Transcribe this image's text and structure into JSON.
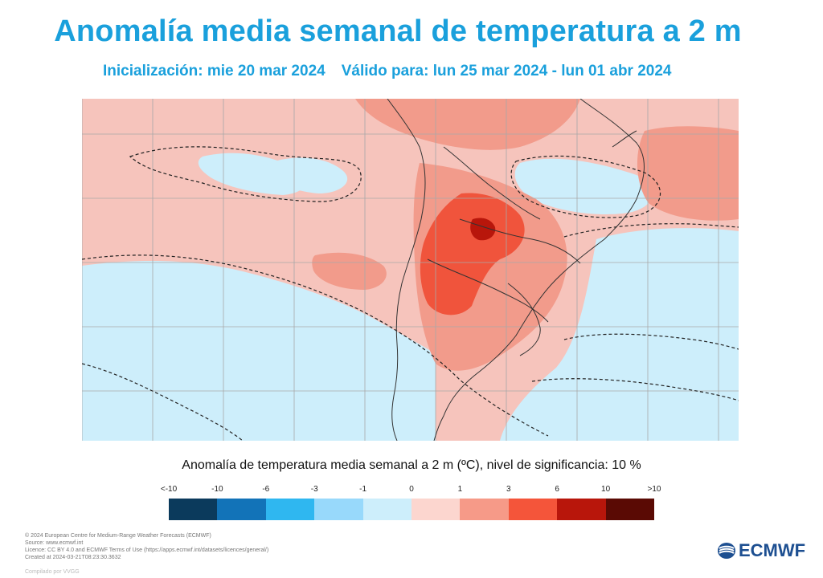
{
  "title": "Anomalía media semanal de temperatura a 2 m",
  "subtitle": {
    "init": "Inicialización: mie 20 mar 2024",
    "valid": "Válido para: lun 25 mar 2024 - lun 01 abr 2024"
  },
  "legend": {
    "title": "Anomalía de temperatura media semanal a 2 m (ºC), nivel de significancia: 10 %",
    "ticks": [
      "<-10",
      "-10",
      "-6",
      "-3",
      "-1",
      "0",
      "1",
      "3",
      "6",
      "10",
      ">10"
    ],
    "colors": [
      "#0b3a5c",
      "#1273b8",
      "#2fb7f0",
      "#98d9fb",
      "#cdeefb",
      "#fcd6cf",
      "#f69a88",
      "#f4553a",
      "#b8160b",
      "#5a0a04"
    ]
  },
  "map": {
    "colors": {
      "warm_light": "#f6c4bc",
      "warm_medium": "#f29b8b",
      "warm_strong": "#f0543c",
      "warm_dark": "#b8160b",
      "cool_light": "#cdeefb",
      "neutral": "#ffffff"
    }
  },
  "footer": {
    "lines": [
      "© 2024 European Centre for Medium-Range Weather Forecasts (ECMWF)",
      "Source: www.ecmwf.int",
      "Licence: CC BY 4.0 and ECMWF Terms of Use (https://apps.ecmwf.int/datasets/licences/general/)",
      "Created at 2024-03-21T08:23:30.3632"
    ],
    "compiled": "Compilado por VVGG"
  },
  "logo": {
    "text": "ECMWF",
    "icon": "ecmwf-logo-icon"
  }
}
